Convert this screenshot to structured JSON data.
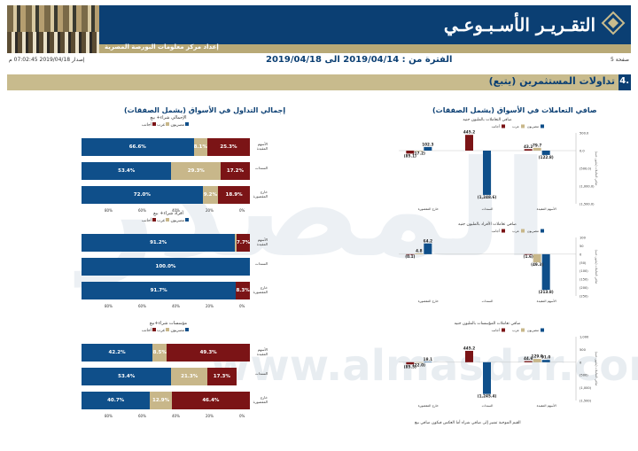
{
  "header": {
    "title": "التقـريـر الأسـبـوعـي",
    "subtitle": "إعداد مركز معلومات البورصة المصرية"
  },
  "info": {
    "page": "صفحة 5",
    "period": "الفترة من : 2019/04/14 الى 2019/04/18",
    "issued": "إصدار 2019/04/18 07:02:45 م"
  },
  "section": {
    "number": "4.",
    "title": "تداولات المستثمرين (يتبع)"
  },
  "left": {
    "title": "إجمالي التداول في الأسواق (يشمل الصفقات)",
    "legend": [
      "مصريون",
      "عرب",
      "أجانب"
    ],
    "axis": [
      "80%",
      "60%",
      "40%",
      "20%",
      "0%"
    ],
    "rows": [
      "الأسهم المقيدة",
      "السندات",
      "خارج المقصورة"
    ],
    "charts": [
      {
        "title": "الإجمالي شراء+ بيع",
        "bars": [
          [
            66.6,
            8.1,
            25.3
          ],
          [
            53.4,
            29.3,
            17.2
          ],
          [
            72.0,
            9.2,
            18.9
          ]
        ]
      },
      {
        "title": "أفراد شراء+ بيع",
        "bars": [
          [
            91.2,
            1.1,
            7.7
          ],
          [
            100.0,
            0,
            0
          ],
          [
            91.7,
            0,
            8.3
          ]
        ]
      },
      {
        "title": "مؤسسات شراء+بيع",
        "bars": [
          [
            42.2,
            8.5,
            49.3
          ],
          [
            53.4,
            21.3,
            17.3
          ],
          [
            40.7,
            12.9,
            46.4
          ]
        ]
      }
    ],
    "labels": [
      [
        "66.6%",
        "8.1%",
        "25.3%"
      ],
      [
        "53.4%",
        "29.3%",
        "17.2%"
      ],
      [
        "72.0%",
        "9.2%",
        "18.9%"
      ],
      [
        "91.2%",
        "",
        "7.7%"
      ],
      [
        "100.0%",
        "",
        ""
      ],
      [
        "91.7%",
        "",
        "8.3%"
      ],
      [
        "42.2%",
        "8.5%",
        "49.3%"
      ],
      [
        "53.4%",
        "21.3%",
        "17.3%"
      ],
      [
        "40.7%",
        "12.9%",
        "46.4%"
      ]
    ]
  },
  "right": {
    "title": "صافي التعاملات في الأسواق (يشمل الصفقات)",
    "legend": [
      "مصريون",
      "عرب",
      "أجانب"
    ],
    "xcats": [
      "الأسهم المقيدة",
      "السندات",
      "خارج المقصورة"
    ],
    "yunit": "صافي التعاملات (مليون جنيه)",
    "charts": [
      {
        "title": "صافي التعاملات بالمليون جنيه",
        "ylim": [
          -1500,
          500
        ],
        "ticks": [
          "500.0",
          "0.0",
          "(500.0)",
          "(1,000.0)",
          "(1,500.0)"
        ],
        "values": [
          [
            -122.8,
            79.7,
            43.2
          ],
          [
            -1248.6,
            0,
            445.2
          ],
          [
            102.3,
            -17.2,
            -85.1
          ]
        ],
        "labels": [
          [
            "(122.8)",
            "79.7",
            "43.2"
          ],
          [
            "(1,248.6)",
            "",
            "445.2"
          ],
          [
            "102.3",
            "(17.2)",
            "(85.1)"
          ]
        ]
      },
      {
        "title": "صافي تعاملات الأفراد بالمليون جنيه",
        "ylim": [
          -250,
          100
        ],
        "ticks": [
          "100",
          "50",
          "0",
          "(50)",
          "(100)",
          "(150)",
          "(200)",
          "(250)"
        ],
        "values": [
          [
            -213.8,
            -49.3,
            -1.6
          ],
          [
            0,
            0,
            0
          ],
          [
            64.2,
            4.8,
            -0.1
          ]
        ],
        "labels": [
          [
            "(213.8)",
            "(49.3)",
            "(1.6)"
          ],
          [
            "",
            "",
            ""
          ],
          [
            "64.2",
            "4.8",
            "(0.1)"
          ]
        ]
      },
      {
        "title": "صافي تعاملات المؤسسات بالمليون جنيه",
        "ylim": [
          -1500,
          1000
        ],
        "ticks": [
          "1,000",
          "500",
          "0",
          "(500)",
          "(1,000)",
          "(1,500)"
        ],
        "values": [
          [
            91.0,
            129.0,
            44.6
          ],
          [
            -1245.4,
            0,
            445.2
          ],
          [
            18.1,
            -22.0,
            -85.5
          ]
        ],
        "labels": [
          [
            "91.0",
            "129.0",
            "44.6"
          ],
          [
            "(1,245.4)",
            "",
            "445.2"
          ],
          [
            "18.1",
            "(22.0)",
            "(85.5)"
          ]
        ]
      }
    ],
    "footnote": "القيم الموجبة تشير إلى صافي شراء أما العكس فيكون صافي بيع"
  },
  "colors": {
    "egyptians": "#0f4f8a",
    "arabs": "#c8b78a",
    "foreigners": "#7b1416",
    "navy": "#0b3f73",
    "gold": "#c8bb8d"
  },
  "watermark": {
    "text": "المصدر",
    "site": "www.almasdar.com"
  }
}
